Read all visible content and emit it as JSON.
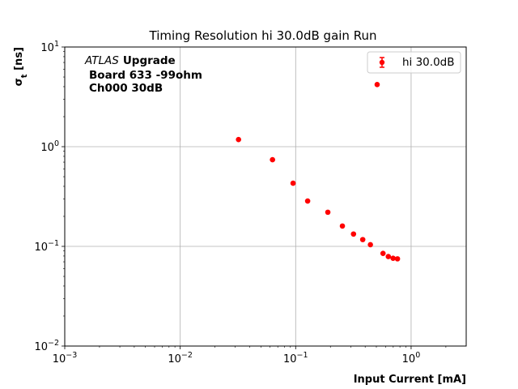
{
  "chart_data": {
    "type": "scatter",
    "title": "Timing Resolution hi 30.0dB gain Run",
    "xlabel": "Input Current [mA]",
    "ylabel": "σ_t [ns]",
    "xscale": "log",
    "yscale": "log",
    "xlim": [
      0.001,
      3
    ],
    "ylim": [
      0.01,
      10
    ],
    "grid": true,
    "legend_position": "upper right",
    "x_tick_labels": [
      {
        "value": 0.001,
        "base": "10",
        "exp": "−3"
      },
      {
        "value": 0.01,
        "base": "10",
        "exp": "−2"
      },
      {
        "value": 0.1,
        "base": "10",
        "exp": "−1"
      },
      {
        "value": 1,
        "base": "10",
        "exp": "0"
      }
    ],
    "y_tick_labels": [
      {
        "value": 0.01,
        "base": "10",
        "exp": "−2"
      },
      {
        "value": 0.1,
        "base": "10",
        "exp": "−1"
      },
      {
        "value": 1,
        "base": "10",
        "exp": "0"
      },
      {
        "value": 10,
        "base": "10",
        "exp": "1"
      }
    ],
    "annotation": {
      "atlas": "ATLAS",
      "upgrade": "Upgrade",
      "line2": "Board 633 -99ohm",
      "line3": "Ch000 30dB"
    },
    "series": [
      {
        "name": "hi 30.0dB",
        "color": "#ff0000",
        "marker": "circle",
        "points": [
          {
            "x": 0.032,
            "y": 1.18
          },
          {
            "x": 0.063,
            "y": 0.74
          },
          {
            "x": 0.095,
            "y": 0.43
          },
          {
            "x": 0.127,
            "y": 0.285
          },
          {
            "x": 0.19,
            "y": 0.22
          },
          {
            "x": 0.254,
            "y": 0.16
          },
          {
            "x": 0.317,
            "y": 0.133
          },
          {
            "x": 0.381,
            "y": 0.117
          },
          {
            "x": 0.444,
            "y": 0.104
          },
          {
            "x": 0.508,
            "y": 4.2
          },
          {
            "x": 0.571,
            "y": 0.085
          },
          {
            "x": 0.635,
            "y": 0.079
          },
          {
            "x": 0.698,
            "y": 0.076
          },
          {
            "x": 0.762,
            "y": 0.075
          }
        ]
      }
    ]
  }
}
